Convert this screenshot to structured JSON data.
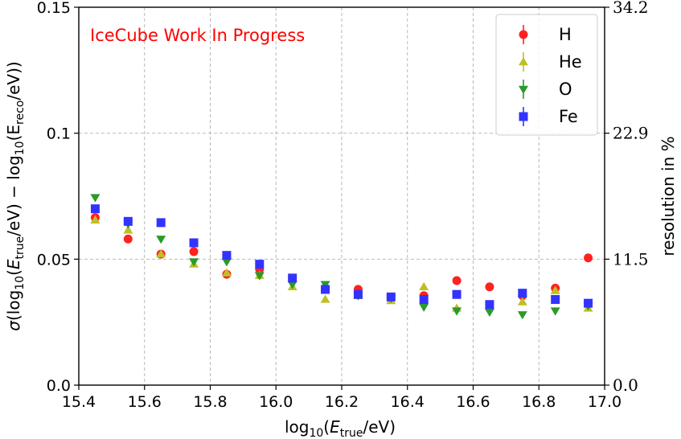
{
  "chart_data": {
    "type": "scatter",
    "annotation": "IceCube Work In Progress",
    "annotation_color": "#ff0000",
    "xlabel": {
      "pre": "log",
      "sub": "10",
      "mid": "(",
      "var": "E",
      "varsub": "true",
      "post": "/eV)"
    },
    "ylabel": "σ(log₁₀(E_true/eV) − log₁₀(E_reco/eV))",
    "ylabel_right": "resolution in %",
    "xlim": [
      15.4,
      17.0
    ],
    "ylim": [
      0.0,
      0.15
    ],
    "x_ticks": [
      "15.4",
      "15.6",
      "15.8",
      "16.0",
      "16.2",
      "16.4",
      "16.6",
      "16.8",
      "17.0"
    ],
    "y_ticks": [
      "0.0",
      "0.05",
      "0.1",
      "0.15"
    ],
    "y_ticks_right": [
      "0.0",
      "11.5",
      "22.9",
      "34.2"
    ],
    "grid": true,
    "legend_position": "top-right",
    "series": [
      {
        "name": "H",
        "marker": "circle",
        "color": "#ff2222",
        "x": [
          15.45,
          15.55,
          15.65,
          15.75,
          15.85,
          15.95,
          16.05,
          16.15,
          16.25,
          16.35,
          16.45,
          16.55,
          16.65,
          16.75,
          16.85,
          16.95
        ],
        "y": [
          0.0665,
          0.058,
          0.052,
          0.053,
          0.044,
          0.046,
          0.0425,
          0.038,
          0.038,
          0.035,
          0.0355,
          0.0415,
          0.039,
          0.0355,
          0.0385,
          0.0505
        ]
      },
      {
        "name": "He",
        "marker": "triangle-up",
        "color": "#bfbf26",
        "x": [
          15.45,
          15.55,
          15.65,
          15.75,
          15.85,
          15.95,
          16.05,
          16.15,
          16.25,
          16.35,
          16.45,
          16.55,
          16.65,
          16.75,
          16.85,
          16.95
        ],
        "y": [
          0.0655,
          0.0615,
          0.052,
          0.048,
          0.0445,
          0.0435,
          0.039,
          0.034,
          0.0355,
          0.0335,
          0.039,
          0.0305,
          0.0315,
          0.033,
          0.0375,
          0.0305
        ]
      },
      {
        "name": "O",
        "marker": "triangle-down",
        "color": "#2a9a2a",
        "x": [
          15.45,
          15.55,
          15.65,
          15.75,
          15.85,
          15.95,
          16.05,
          16.15,
          16.25,
          16.35,
          16.45,
          16.55,
          16.65,
          16.75,
          16.85,
          16.95
        ],
        "y": [
          0.0745,
          0.064,
          0.058,
          0.049,
          0.049,
          0.0435,
          0.04,
          0.04,
          0.0355,
          0.0345,
          0.031,
          0.0295,
          0.029,
          0.028,
          0.0295,
          0.0315
        ]
      },
      {
        "name": "Fe",
        "marker": "square",
        "color": "#3333ff",
        "x": [
          15.45,
          15.55,
          15.65,
          15.75,
          15.85,
          15.95,
          16.05,
          16.15,
          16.25,
          16.35,
          16.45,
          16.55,
          16.65,
          16.75,
          16.85,
          16.95
        ],
        "y": [
          0.07,
          0.065,
          0.0645,
          0.0565,
          0.0515,
          0.048,
          0.0425,
          0.038,
          0.036,
          0.035,
          0.034,
          0.036,
          0.032,
          0.0365,
          0.034,
          0.0325
        ]
      }
    ]
  }
}
